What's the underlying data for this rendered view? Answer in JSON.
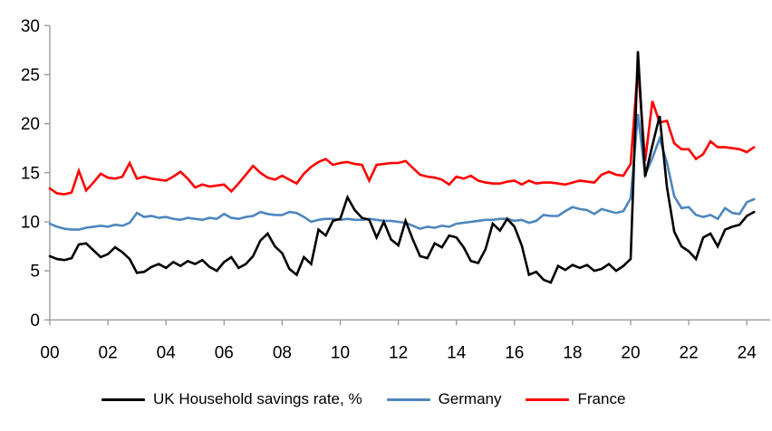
{
  "chart_data": {
    "type": "line",
    "title": "",
    "frequency": "quarterly",
    "start_period": "2000Q1",
    "end_period": "2024Q2",
    "legend_position": "bottom",
    "grid": false,
    "axis_color": "#9C9C9C",
    "tick_label_color": "#000000",
    "y_axis": {
      "range": [
        0,
        30
      ],
      "tick_values": [
        0,
        5,
        10,
        15,
        20,
        25,
        30
      ],
      "tick_labels": [
        "0",
        "5",
        "10",
        "15",
        "20",
        "25",
        "30"
      ]
    },
    "x_axis": {
      "range_years": [
        2000,
        2024.9
      ],
      "tick_years": [
        2000,
        2002,
        2004,
        2006,
        2008,
        2010,
        2012,
        2014,
        2016,
        2018,
        2020,
        2022,
        2024
      ],
      "tick_labels": [
        "00",
        "02",
        "04",
        "06",
        "08",
        "10",
        "12",
        "14",
        "16",
        "18",
        "20",
        "22",
        "24"
      ]
    },
    "series": [
      {
        "name": "UK Household savings rate, %",
        "color": "#000000",
        "values": [
          6.5,
          6.2,
          6.1,
          6.3,
          7.7,
          7.8,
          7.1,
          6.4,
          6.7,
          7.4,
          6.9,
          6.2,
          4.8,
          4.9,
          5.4,
          5.7,
          5.3,
          5.9,
          5.5,
          6.0,
          5.7,
          6.1,
          5.4,
          5.0,
          5.9,
          6.4,
          5.3,
          5.7,
          6.5,
          8.1,
          8.8,
          7.5,
          6.8,
          5.2,
          4.6,
          6.4,
          5.7,
          9.2,
          8.6,
          10.1,
          10.3,
          12.5,
          11.2,
          10.4,
          10.2,
          8.4,
          10.0,
          8.2,
          7.6,
          10.1,
          8.2,
          6.5,
          6.3,
          7.8,
          7.4,
          8.6,
          8.4,
          7.4,
          6.0,
          5.8,
          7.2,
          9.8,
          9.1,
          10.3,
          9.5,
          7.6,
          4.6,
          4.9,
          4.1,
          3.8,
          5.5,
          5.1,
          5.6,
          5.3,
          5.6,
          5.0,
          5.2,
          5.7,
          5.0,
          5.5,
          6.2,
          27.4,
          14.6,
          17.8,
          20.8,
          13.5,
          9.0,
          7.5,
          7.0,
          6.2,
          8.4,
          8.8,
          7.5,
          9.2,
          9.5,
          9.7,
          10.6,
          11.0
        ]
      },
      {
        "name": "Germany",
        "color": "#4E86BD",
        "values": [
          9.8,
          9.5,
          9.3,
          9.2,
          9.2,
          9.4,
          9.5,
          9.6,
          9.5,
          9.7,
          9.6,
          9.9,
          10.9,
          10.5,
          10.6,
          10.4,
          10.5,
          10.3,
          10.2,
          10.4,
          10.3,
          10.2,
          10.4,
          10.3,
          10.8,
          10.4,
          10.3,
          10.5,
          10.6,
          11.0,
          10.8,
          10.7,
          10.7,
          11.0,
          10.9,
          10.5,
          10.0,
          10.2,
          10.3,
          10.3,
          10.2,
          10.3,
          10.2,
          10.2,
          10.3,
          10.2,
          10.1,
          10.1,
          10.0,
          9.9,
          9.6,
          9.3,
          9.5,
          9.4,
          9.6,
          9.5,
          9.8,
          9.9,
          10.0,
          10.1,
          10.2,
          10.2,
          10.3,
          10.3,
          10.1,
          10.2,
          9.9,
          10.1,
          10.7,
          10.6,
          10.6,
          11.1,
          11.5,
          11.3,
          11.2,
          10.8,
          11.3,
          11.1,
          10.9,
          11.1,
          12.4,
          21.0,
          14.8,
          16.5,
          18.5,
          16.0,
          12.6,
          11.4,
          11.5,
          10.7,
          10.5,
          10.7,
          10.3,
          11.4,
          10.9,
          10.8,
          12.0,
          12.3
        ]
      },
      {
        "name": "France",
        "color": "#FF0000",
        "values": [
          13.4,
          12.9,
          12.8,
          13.0,
          15.2,
          13.2,
          14.0,
          14.9,
          14.5,
          14.4,
          14.6,
          16.0,
          14.4,
          14.6,
          14.4,
          14.3,
          14.2,
          14.6,
          15.1,
          14.4,
          13.5,
          13.8,
          13.6,
          13.7,
          13.8,
          13.1,
          13.9,
          14.8,
          15.7,
          15.0,
          14.5,
          14.3,
          14.7,
          14.3,
          13.9,
          14.9,
          15.6,
          16.1,
          16.4,
          15.8,
          16.0,
          16.1,
          15.9,
          15.8,
          14.2,
          15.8,
          15.9,
          16.0,
          16.0,
          16.2,
          15.5,
          14.8,
          14.6,
          14.5,
          14.3,
          13.8,
          14.6,
          14.4,
          14.7,
          14.2,
          14.0,
          13.9,
          13.9,
          14.1,
          14.2,
          13.8,
          14.2,
          13.9,
          14.0,
          14.0,
          13.9,
          13.8,
          14.0,
          14.2,
          14.1,
          14.0,
          14.8,
          15.1,
          14.8,
          14.7,
          15.9,
          25.8,
          16.2,
          22.3,
          20.1,
          20.3,
          18.0,
          17.4,
          17.4,
          16.4,
          16.9,
          18.2,
          17.6,
          17.6,
          17.5,
          17.4,
          17.1,
          17.6
        ]
      }
    ]
  }
}
